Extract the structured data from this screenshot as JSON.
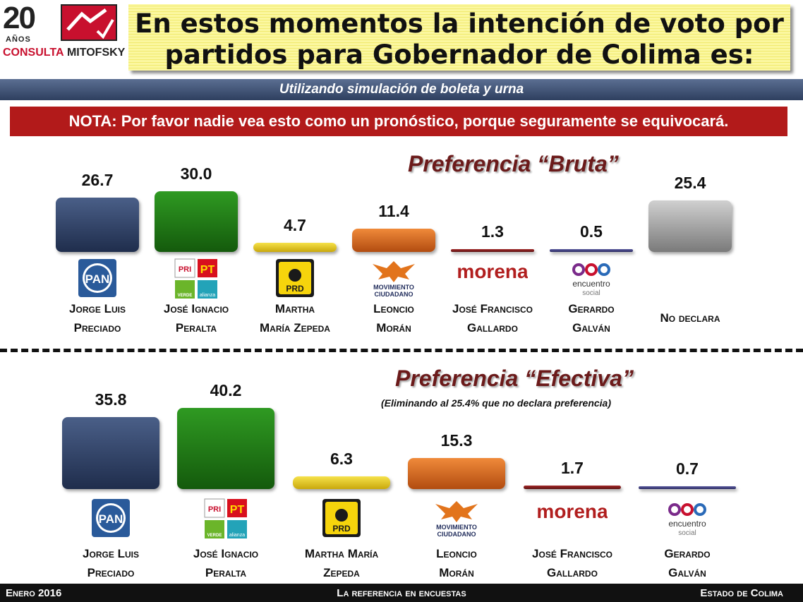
{
  "logo": {
    "number": "20",
    "years": "AÑOS",
    "brand_a": "CONSULTA",
    "brand_b": "MITOFSKY"
  },
  "title_line1": "En estos momentos la intención de voto por",
  "title_line2": "partidos para Gobernador de Colima es:",
  "subtitle": "Utilizando simulación de boleta y urna",
  "note": "NOTA: Por favor nadie vea esto como un pronóstico, porque seguramente se equivocará.",
  "colors": {
    "PAN": "#2c3c5e",
    "PRI-PVEM": "#1c6e12",
    "PRD": "#e2c81e",
    "MC": "#d8661c",
    "MORENA": "#7a1a1a",
    "PES": "#3c3c78",
    "ND": "#9a9a9a"
  },
  "party_logos": {
    "PAN": "PAN",
    "PRI": "PRI",
    "PT": "PT",
    "VERDE": "VERDE",
    "alianza": "alianza",
    "PRD": "PRD",
    "MC_a": "MOVIMIENTO",
    "MC_b": "CIUDADANO",
    "MORENA": "morena",
    "PES_a": "encuentro",
    "PES_b": "social"
  },
  "chart_data": [
    {
      "type": "bar",
      "title": "Preferencia “Bruta”",
      "categories": [
        "Jorge Luis Preciado",
        "José Ignacio Peralta",
        "Martha María Zepeda",
        "Leoncio Morán",
        "José Francisco Gallardo",
        "Gerardo Galván",
        "No declara"
      ],
      "values": [
        26.7,
        30.0,
        4.7,
        11.4,
        1.3,
        0.5,
        25.4
      ],
      "value_labels": [
        "26.7",
        "30.0",
        "4.7",
        "11.4",
        "1.3",
        "0.5",
        "25.4"
      ],
      "label_lines": [
        [
          "Jorge Luis",
          "Preciado"
        ],
        [
          "José Ignacio",
          "Peralta"
        ],
        [
          "Martha",
          "María Zepeda"
        ],
        [
          "Leoncio",
          "Morán"
        ],
        [
          "José Francisco",
          "Gallardo"
        ],
        [
          "Gerardo",
          "Galván"
        ],
        [
          "No declara"
        ]
      ],
      "parties": [
        "PAN",
        "PRI-PVEM",
        "PRD",
        "MC",
        "MORENA",
        "PES",
        "ND"
      ]
    },
    {
      "type": "bar",
      "title": "Preferencia “Efectiva”",
      "subtitle": "(Eliminando al 25.4% que no declara preferencia)",
      "categories": [
        "Jorge Luis Preciado",
        "José Ignacio Peralta",
        "Martha María Zepeda",
        "Leoncio Morán",
        "José Francisco Gallardo",
        "Gerardo Galván"
      ],
      "values": [
        35.8,
        40.2,
        6.3,
        15.3,
        1.7,
        0.7
      ],
      "value_labels": [
        "35.8",
        "40.2",
        "6.3",
        "15.3",
        "1.7",
        "0.7"
      ],
      "label_lines": [
        [
          "Jorge Luis",
          "Preciado"
        ],
        [
          "José Ignacio",
          "Peralta"
        ],
        [
          "Martha María",
          "Zepeda"
        ],
        [
          "Leoncio",
          "Morán"
        ],
        [
          "José Francisco",
          "Gallardo"
        ],
        [
          "Gerardo",
          "Galván"
        ]
      ],
      "parties": [
        "PAN",
        "PRI-PVEM",
        "PRD",
        "MC",
        "MORENA",
        "PES"
      ]
    }
  ],
  "footer": {
    "left": "Enero 2016",
    "center": "La referencia en encuestas",
    "right": "Estado de Colima"
  }
}
